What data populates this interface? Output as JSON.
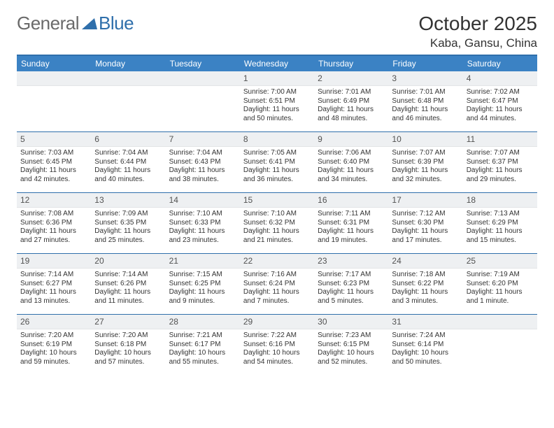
{
  "brand": {
    "part1": "General",
    "part2": "Blue"
  },
  "title": "October 2025",
  "location": "Kaba, Gansu, China",
  "colors": {
    "header_bg": "#3b82c4",
    "rule": "#2f6fab",
    "daynum_bg": "#eef0f2",
    "text": "#333333",
    "logo_gray": "#6a6a6a",
    "logo_blue": "#2f6fab"
  },
  "day_labels": [
    "Sunday",
    "Monday",
    "Tuesday",
    "Wednesday",
    "Thursday",
    "Friday",
    "Saturday"
  ],
  "weeks": [
    [
      {
        "n": "",
        "empty": true
      },
      {
        "n": "",
        "empty": true
      },
      {
        "n": "",
        "empty": true
      },
      {
        "n": "1",
        "sunrise": "Sunrise: 7:00 AM",
        "sunset": "Sunset: 6:51 PM",
        "day1": "Daylight: 11 hours",
        "day2": "and 50 minutes."
      },
      {
        "n": "2",
        "sunrise": "Sunrise: 7:01 AM",
        "sunset": "Sunset: 6:49 PM",
        "day1": "Daylight: 11 hours",
        "day2": "and 48 minutes."
      },
      {
        "n": "3",
        "sunrise": "Sunrise: 7:01 AM",
        "sunset": "Sunset: 6:48 PM",
        "day1": "Daylight: 11 hours",
        "day2": "and 46 minutes."
      },
      {
        "n": "4",
        "sunrise": "Sunrise: 7:02 AM",
        "sunset": "Sunset: 6:47 PM",
        "day1": "Daylight: 11 hours",
        "day2": "and 44 minutes."
      }
    ],
    [
      {
        "n": "5",
        "sunrise": "Sunrise: 7:03 AM",
        "sunset": "Sunset: 6:45 PM",
        "day1": "Daylight: 11 hours",
        "day2": "and 42 minutes."
      },
      {
        "n": "6",
        "sunrise": "Sunrise: 7:04 AM",
        "sunset": "Sunset: 6:44 PM",
        "day1": "Daylight: 11 hours",
        "day2": "and 40 minutes."
      },
      {
        "n": "7",
        "sunrise": "Sunrise: 7:04 AM",
        "sunset": "Sunset: 6:43 PM",
        "day1": "Daylight: 11 hours",
        "day2": "and 38 minutes."
      },
      {
        "n": "8",
        "sunrise": "Sunrise: 7:05 AM",
        "sunset": "Sunset: 6:41 PM",
        "day1": "Daylight: 11 hours",
        "day2": "and 36 minutes."
      },
      {
        "n": "9",
        "sunrise": "Sunrise: 7:06 AM",
        "sunset": "Sunset: 6:40 PM",
        "day1": "Daylight: 11 hours",
        "day2": "and 34 minutes."
      },
      {
        "n": "10",
        "sunrise": "Sunrise: 7:07 AM",
        "sunset": "Sunset: 6:39 PM",
        "day1": "Daylight: 11 hours",
        "day2": "and 32 minutes."
      },
      {
        "n": "11",
        "sunrise": "Sunrise: 7:07 AM",
        "sunset": "Sunset: 6:37 PM",
        "day1": "Daylight: 11 hours",
        "day2": "and 29 minutes."
      }
    ],
    [
      {
        "n": "12",
        "sunrise": "Sunrise: 7:08 AM",
        "sunset": "Sunset: 6:36 PM",
        "day1": "Daylight: 11 hours",
        "day2": "and 27 minutes."
      },
      {
        "n": "13",
        "sunrise": "Sunrise: 7:09 AM",
        "sunset": "Sunset: 6:35 PM",
        "day1": "Daylight: 11 hours",
        "day2": "and 25 minutes."
      },
      {
        "n": "14",
        "sunrise": "Sunrise: 7:10 AM",
        "sunset": "Sunset: 6:33 PM",
        "day1": "Daylight: 11 hours",
        "day2": "and 23 minutes."
      },
      {
        "n": "15",
        "sunrise": "Sunrise: 7:10 AM",
        "sunset": "Sunset: 6:32 PM",
        "day1": "Daylight: 11 hours",
        "day2": "and 21 minutes."
      },
      {
        "n": "16",
        "sunrise": "Sunrise: 7:11 AM",
        "sunset": "Sunset: 6:31 PM",
        "day1": "Daylight: 11 hours",
        "day2": "and 19 minutes."
      },
      {
        "n": "17",
        "sunrise": "Sunrise: 7:12 AM",
        "sunset": "Sunset: 6:30 PM",
        "day1": "Daylight: 11 hours",
        "day2": "and 17 minutes."
      },
      {
        "n": "18",
        "sunrise": "Sunrise: 7:13 AM",
        "sunset": "Sunset: 6:29 PM",
        "day1": "Daylight: 11 hours",
        "day2": "and 15 minutes."
      }
    ],
    [
      {
        "n": "19",
        "sunrise": "Sunrise: 7:14 AM",
        "sunset": "Sunset: 6:27 PM",
        "day1": "Daylight: 11 hours",
        "day2": "and 13 minutes."
      },
      {
        "n": "20",
        "sunrise": "Sunrise: 7:14 AM",
        "sunset": "Sunset: 6:26 PM",
        "day1": "Daylight: 11 hours",
        "day2": "and 11 minutes."
      },
      {
        "n": "21",
        "sunrise": "Sunrise: 7:15 AM",
        "sunset": "Sunset: 6:25 PM",
        "day1": "Daylight: 11 hours",
        "day2": "and 9 minutes."
      },
      {
        "n": "22",
        "sunrise": "Sunrise: 7:16 AM",
        "sunset": "Sunset: 6:24 PM",
        "day1": "Daylight: 11 hours",
        "day2": "and 7 minutes."
      },
      {
        "n": "23",
        "sunrise": "Sunrise: 7:17 AM",
        "sunset": "Sunset: 6:23 PM",
        "day1": "Daylight: 11 hours",
        "day2": "and 5 minutes."
      },
      {
        "n": "24",
        "sunrise": "Sunrise: 7:18 AM",
        "sunset": "Sunset: 6:22 PM",
        "day1": "Daylight: 11 hours",
        "day2": "and 3 minutes."
      },
      {
        "n": "25",
        "sunrise": "Sunrise: 7:19 AM",
        "sunset": "Sunset: 6:20 PM",
        "day1": "Daylight: 11 hours",
        "day2": "and 1 minute."
      }
    ],
    [
      {
        "n": "26",
        "sunrise": "Sunrise: 7:20 AM",
        "sunset": "Sunset: 6:19 PM",
        "day1": "Daylight: 10 hours",
        "day2": "and 59 minutes."
      },
      {
        "n": "27",
        "sunrise": "Sunrise: 7:20 AM",
        "sunset": "Sunset: 6:18 PM",
        "day1": "Daylight: 10 hours",
        "day2": "and 57 minutes."
      },
      {
        "n": "28",
        "sunrise": "Sunrise: 7:21 AM",
        "sunset": "Sunset: 6:17 PM",
        "day1": "Daylight: 10 hours",
        "day2": "and 55 minutes."
      },
      {
        "n": "29",
        "sunrise": "Sunrise: 7:22 AM",
        "sunset": "Sunset: 6:16 PM",
        "day1": "Daylight: 10 hours",
        "day2": "and 54 minutes."
      },
      {
        "n": "30",
        "sunrise": "Sunrise: 7:23 AM",
        "sunset": "Sunset: 6:15 PM",
        "day1": "Daylight: 10 hours",
        "day2": "and 52 minutes."
      },
      {
        "n": "31",
        "sunrise": "Sunrise: 7:24 AM",
        "sunset": "Sunset: 6:14 PM",
        "day1": "Daylight: 10 hours",
        "day2": "and 50 minutes."
      },
      {
        "n": "",
        "empty": true
      }
    ]
  ]
}
